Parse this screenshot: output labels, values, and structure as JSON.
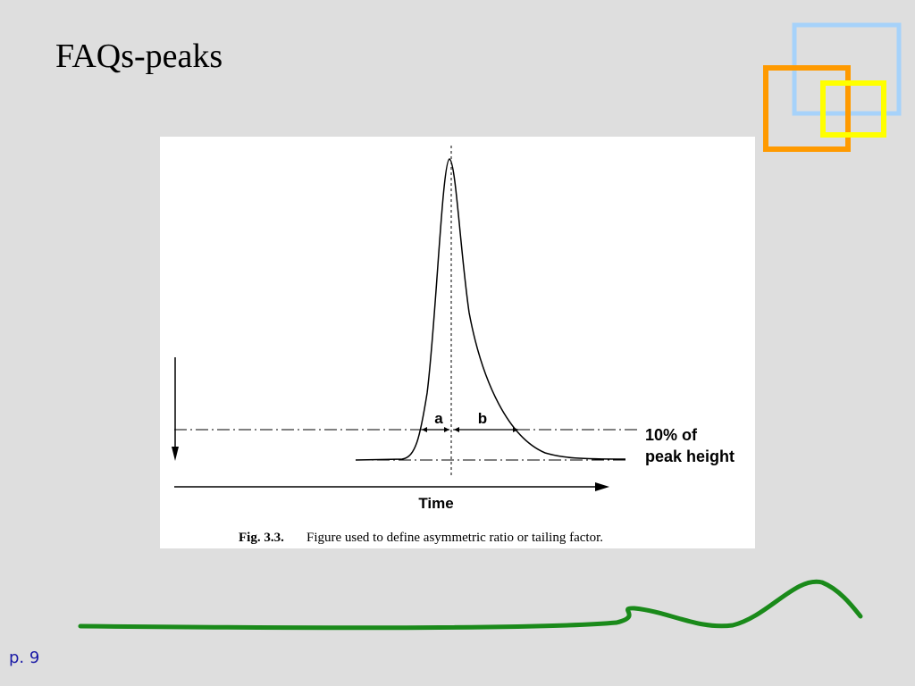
{
  "slide": {
    "title": "FAQs-peaks",
    "figure": {
      "labels": {
        "a": "a",
        "b": "b",
        "threshold_line1": "10% of",
        "threshold_line2": "peak height",
        "x_axis": "Time"
      },
      "caption": {
        "number": "Fig. 3.3.",
        "text": "Figure used to define asymmetric ratio or tailing factor."
      }
    },
    "footer": {
      "page": "p. 9"
    }
  }
}
